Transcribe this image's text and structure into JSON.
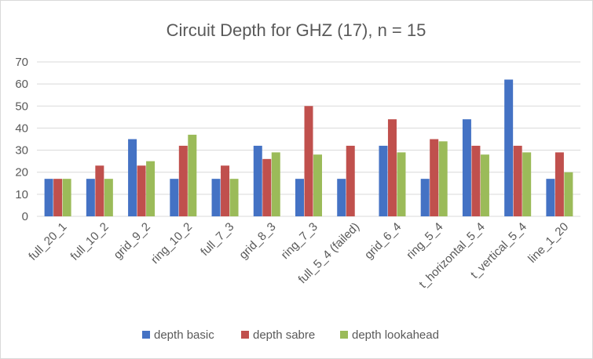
{
  "chart_data": {
    "type": "bar",
    "title": "Circuit Depth for GHZ (17), n = 15",
    "xlabel": "",
    "ylabel": "",
    "ylim": [
      0,
      70
    ],
    "yticks": [
      0,
      10,
      20,
      30,
      40,
      50,
      60,
      70
    ],
    "grid": true,
    "legend_position": "bottom",
    "categories": [
      "full_20_1",
      "full_10_2",
      "grid_9_2",
      "ring_10_2",
      "full_7_3",
      "grid_8_3",
      "ring_7_3",
      "full_5_4 (failed)",
      "grid_6_4",
      "ring_5_4",
      "t_horizontal_5_4",
      "t_vertical_5_4",
      "line_1_20"
    ],
    "series": [
      {
        "name": "depth basic",
        "color": "#4472c4",
        "values": [
          17,
          17,
          35,
          17,
          17,
          32,
          17,
          17,
          32,
          17,
          44,
          62,
          17
        ]
      },
      {
        "name": "depth sabre",
        "color": "#c0504d",
        "values": [
          17,
          23,
          23,
          32,
          23,
          26,
          50,
          32,
          44,
          35,
          32,
          32,
          29
        ]
      },
      {
        "name": "depth lookahead",
        "color": "#9bbb59",
        "values": [
          17,
          17,
          25,
          37,
          17,
          29,
          28,
          null,
          29,
          34,
          28,
          29,
          20
        ]
      }
    ]
  }
}
